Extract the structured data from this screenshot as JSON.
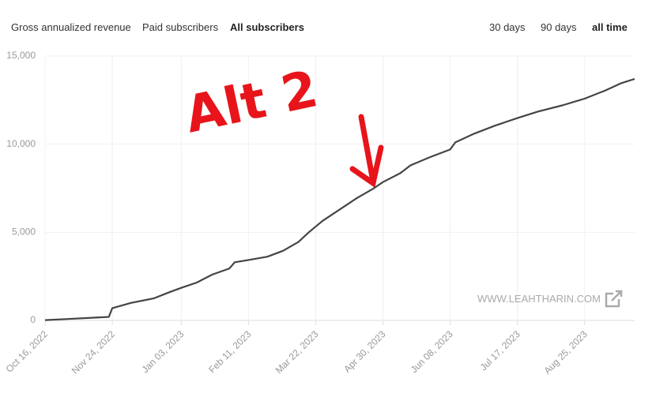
{
  "tabs": [
    "Gross annualized revenue",
    "Paid subscribers",
    "All subscribers"
  ],
  "range_tabs": [
    "30 days",
    "90 days",
    "all time"
  ],
  "watermark": "WWW.LEAHTHARIN.COM",
  "chart_data": {
    "type": "line",
    "annotation": "Alt 2",
    "x": [
      "2022-10-16",
      "2022-10-29",
      "2022-11-10",
      "2022-11-22",
      "2022-11-24",
      "2022-12-05",
      "2022-12-18",
      "2022-12-27",
      "2023-01-03",
      "2023-01-12",
      "2023-01-21",
      "2023-01-31",
      "2023-02-03",
      "2023-02-11",
      "2023-02-22",
      "2023-03-03",
      "2023-03-12",
      "2023-03-18",
      "2023-03-26",
      "2023-04-05",
      "2023-04-15",
      "2023-04-24",
      "2023-04-30",
      "2023-05-10",
      "2023-05-16",
      "2023-05-27",
      "2023-06-08",
      "2023-06-11",
      "2023-06-22",
      "2023-07-04",
      "2023-07-17",
      "2023-07-29",
      "2023-08-12",
      "2023-08-25",
      "2023-09-06",
      "2023-09-15",
      "2023-09-23"
    ],
    "series": [
      {
        "color": "#444444",
        "values": [
          20,
          80,
          140,
          200,
          700,
          1000,
          1250,
          1600,
          1850,
          2150,
          2600,
          2950,
          3300,
          3430,
          3620,
          3950,
          4450,
          5000,
          5650,
          6300,
          6950,
          7450,
          7850,
          8350,
          8800,
          9250,
          9700,
          10100,
          10600,
          11050,
          11480,
          11850,
          12200,
          12580,
          13050,
          13450,
          13700
        ]
      }
    ],
    "xlim": [
      "2022-10-16",
      "2023-09-23"
    ],
    "xticks": [
      {
        "value": "2022-10-16",
        "label": "Oct 16, 2022"
      },
      {
        "value": "2022-11-24",
        "label": "Nov 24, 2022"
      },
      {
        "value": "2023-01-03",
        "label": "Jan 03, 2023"
      },
      {
        "value": "2023-02-11",
        "label": "Feb 11, 2023"
      },
      {
        "value": "2023-03-22",
        "label": "Mar 22, 2023"
      },
      {
        "value": "2023-04-30",
        "label": "Apr 30, 2023"
      },
      {
        "value": "2023-06-08",
        "label": "Jun 08, 2023"
      },
      {
        "value": "2023-07-17",
        "label": "Jul 17, 2023"
      },
      {
        "value": "2023-08-25",
        "label": "Aug 25, 2023"
      }
    ],
    "ylim": [
      0,
      15000
    ],
    "yticks": [
      0,
      {
        "value": 5000,
        "label": "5,000"
      },
      {
        "value": 10000,
        "label": "10,000"
      },
      {
        "value": 15000,
        "label": "15,000"
      }
    ],
    "grid": true
  }
}
